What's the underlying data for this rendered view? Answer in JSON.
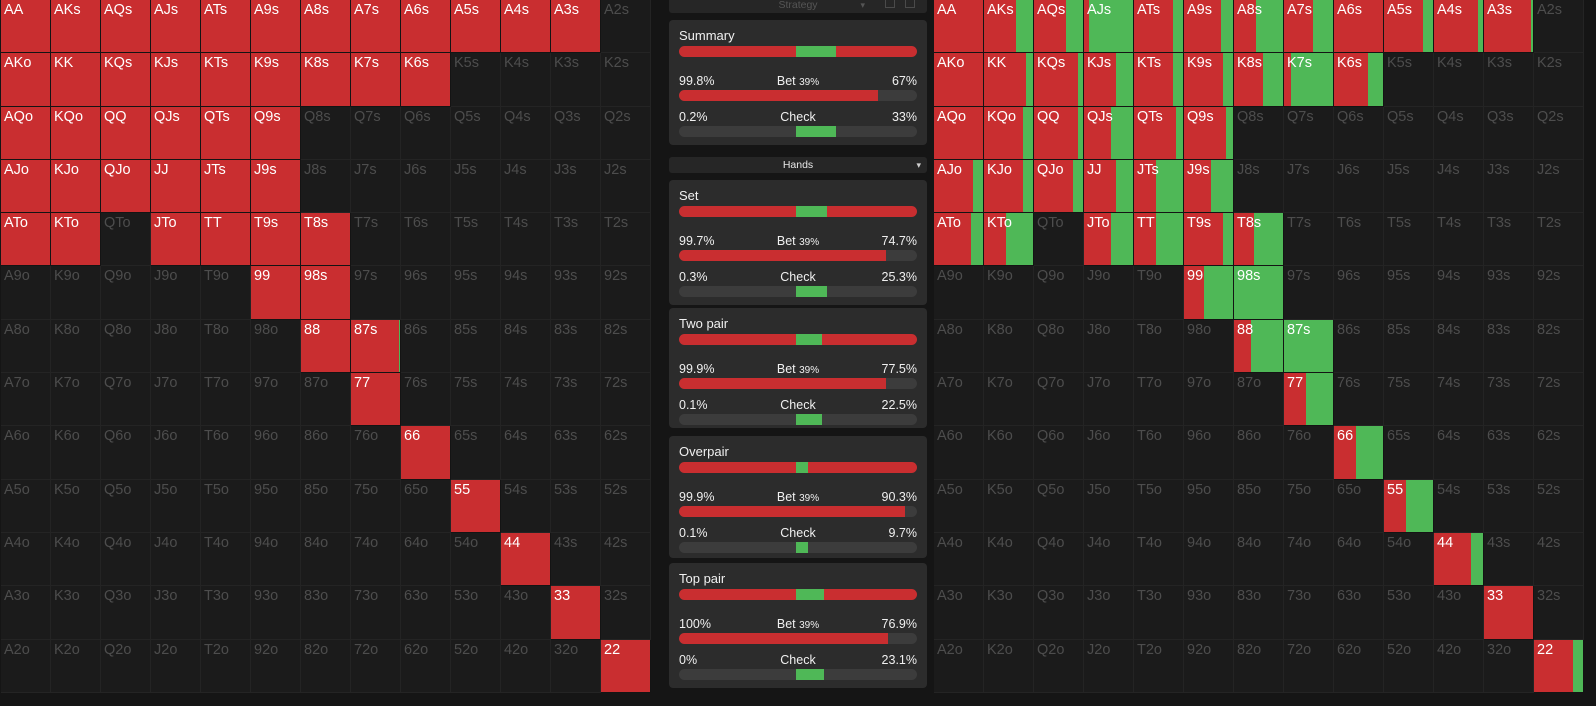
{
  "colors": {
    "bet": "#c92e30",
    "check": "#4fb857",
    "empty_cell": "#1b1b1b",
    "panel": "#2c2c2c"
  },
  "ranks": [
    "A",
    "K",
    "Q",
    "J",
    "T",
    "9",
    "8",
    "7",
    "6",
    "5",
    "4",
    "3",
    "2"
  ],
  "left_grid": {
    "in_range": [
      "AA",
      "AKs",
      "AQs",
      "AJs",
      "ATs",
      "A9s",
      "A8s",
      "A7s",
      "A6s",
      "A5s",
      "A4s",
      "A3s",
      "AKo",
      "KK",
      "KQs",
      "KJs",
      "KTs",
      "K9s",
      "K8s",
      "K7s",
      "K6s",
      "AQo",
      "KQo",
      "QQ",
      "QJs",
      "QTs",
      "Q9s",
      "AJo",
      "KJo",
      "QJo",
      "JJ",
      "JTs",
      "J9s",
      "ATo",
      "KTo",
      "JTo",
      "TT",
      "T9s",
      "T8s",
      "99",
      "98s",
      "88",
      "87s",
      "77",
      "66",
      "55",
      "44",
      "33",
      "22"
    ],
    "check_fraction": {
      "87s": 0.02
    }
  },
  "right_grid": {
    "check_fraction": {
      "AA": 0.0,
      "AKs": 0.35,
      "AQs": 0.35,
      "AJs": 0.9,
      "ATs": 0.2,
      "A9s": 0.25,
      "A8s": 0.55,
      "A7s": 0.4,
      "A6s": 0.0,
      "A5s": 0.2,
      "A4s": 0.1,
      "A3s": 0.05,
      "AKo": 0.0,
      "KK": 0.15,
      "KQs": 0.1,
      "KJs": 0.35,
      "KTs": 0.2,
      "K9s": 0.2,
      "K8s": 0.4,
      "K7s": 0.85,
      "K6s": 0.3,
      "AQo": 0.0,
      "KQo": 0.2,
      "QQ": 0.1,
      "QJs": 0.45,
      "QTs": 0.15,
      "Q9s": 0.15,
      "AJo": 0.2,
      "KJo": 0.2,
      "QJo": 0.2,
      "JJ": 0.35,
      "JTs": 0.55,
      "J9s": 0.45,
      "ATo": 0.25,
      "KTo": 0.55,
      "JTo": 0.45,
      "TT": 0.55,
      "T9s": 0.2,
      "T8s": 0.6,
      "99": 0.6,
      "98s": 1.0,
      "88": 0.65,
      "87s": 1.0,
      "77": 0.55,
      "66": 0.55,
      "55": 0.55,
      "44": 0.25,
      "33": 0.0,
      "22": 0.2
    }
  },
  "strategy_bar": {
    "label": "Strategy"
  },
  "hands_bar": {
    "label": "Hands"
  },
  "panels": [
    {
      "title": "Summary",
      "top_bet": 0.49,
      "top_check": 0.17,
      "bet_left": "99.8%",
      "bet_label": "Bet",
      "bet_size": "39%",
      "bet_right": "67%",
      "bet_bar": 0.835,
      "check_left": "0.2%",
      "check_label": "Check",
      "check_right": "33%",
      "check_bar_start": 0.49,
      "check_bar": 0.17
    },
    {
      "title": "Set",
      "top_bet": 0.49,
      "top_check": 0.13,
      "bet_left": "99.7%",
      "bet_label": "Bet",
      "bet_size": "39%",
      "bet_right": "74.7%",
      "bet_bar": 0.87,
      "check_left": "0.3%",
      "check_label": "Check",
      "check_right": "25.3%",
      "check_bar_start": 0.49,
      "check_bar": 0.13
    },
    {
      "title": "Two pair",
      "top_bet": 0.49,
      "top_check": 0.11,
      "bet_left": "99.9%",
      "bet_label": "Bet",
      "bet_size": "39%",
      "bet_right": "77.5%",
      "bet_bar": 0.87,
      "check_left": "0.1%",
      "check_label": "Check",
      "check_right": "22.5%",
      "check_bar_start": 0.49,
      "check_bar": 0.11
    },
    {
      "title": "Overpair",
      "top_bet": 0.49,
      "top_check": 0.05,
      "bet_left": "99.9%",
      "bet_label": "Bet",
      "bet_size": "39%",
      "bet_right": "90.3%",
      "bet_bar": 0.95,
      "check_left": "0.1%",
      "check_label": "Check",
      "check_right": "9.7%",
      "check_bar_start": 0.49,
      "check_bar": 0.05
    },
    {
      "title": "Top pair",
      "top_bet": 0.49,
      "top_check": 0.12,
      "bet_left": "100%",
      "bet_label": "Bet",
      "bet_size": "39%",
      "bet_right": "76.9%",
      "bet_bar": 0.88,
      "check_left": "0%",
      "check_label": "Check",
      "check_right": "23.1%",
      "check_bar_start": 0.49,
      "check_bar": 0.12
    }
  ]
}
